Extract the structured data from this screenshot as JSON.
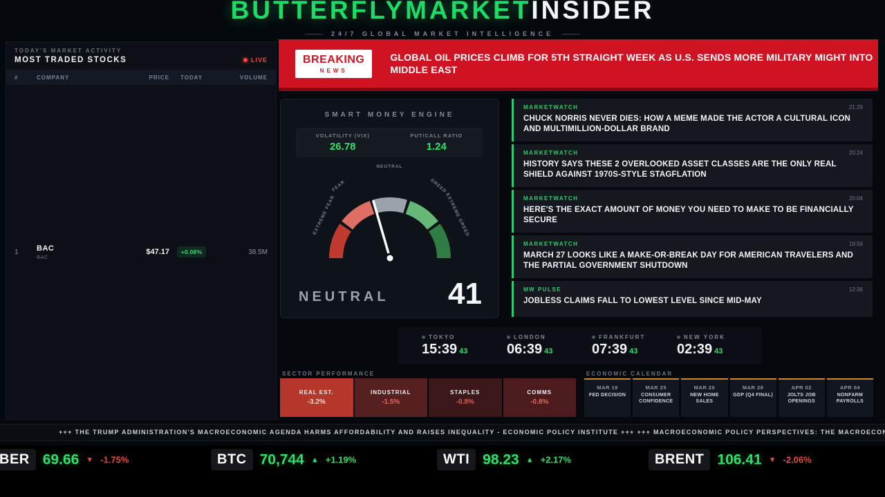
{
  "colors": {
    "accent_green": "#1ddb66",
    "alert_red": "#d01323",
    "gauge_segments": [
      "#c13a2e",
      "#df6e63",
      "#9aa2ab",
      "#67b877",
      "#2f7d45"
    ]
  },
  "header": {
    "brand_primary": "BUTTERFLYMARKET",
    "brand_secondary": "INSIDER",
    "subtitle": "24/7 GLOBAL MARKET INTELLIGENCE"
  },
  "stocks_panel": {
    "eyebrow": "TODAY'S MARKET ACTIVITY",
    "title": "MOST TRADED STOCKS",
    "live_label": "LIVE",
    "columns": [
      "#",
      "COMPANY",
      "PRICE",
      "TODAY",
      "VOLUME"
    ],
    "rows": [
      {
        "rank": "1",
        "symbol": "BAC",
        "sub_symbol": "BAC",
        "price": "$47.17",
        "change": "+0.08%",
        "volume": "38.5M"
      }
    ]
  },
  "breaking": {
    "badge_line1": "BREAKING",
    "badge_line2": "NEWS",
    "headline": "GLOBAL OIL PRICES CLIMB FOR 5TH STRAIGHT WEEK AS U.S. SENDS MORE MILITARY MIGHT INTO MIDDLE EAST"
  },
  "smart_money": {
    "title": "SMART MONEY ENGINE",
    "metrics": [
      {
        "label": "VOLATILITY (VIX)",
        "value": "26.78"
      },
      {
        "label": "PUT/CALL RATIO",
        "value": "1.24"
      }
    ],
    "gauge": {
      "value": 41,
      "sentiment": "NEUTRAL",
      "labels": {
        "extreme_fear": "EXTREME FEAR",
        "fear": "FEAR",
        "neutral": "NEUTRAL",
        "greed": "GREED",
        "extreme_greed": "EXTREME GREED"
      }
    }
  },
  "news": {
    "items": [
      {
        "source": "MARKETWATCH",
        "time": "21:29",
        "headline": "CHUCK NORRIS NEVER DIES: HOW A MEME MADE THE ACTOR A CULTURAL ICON AND MULTIMILLION-DOLLAR BRAND"
      },
      {
        "source": "MARKETWATCH",
        "time": "20:24",
        "headline": "HISTORY SAYS THESE 2 OVERLOOKED ASSET CLASSES ARE THE ONLY REAL SHIELD AGAINST 1970S-STYLE STAGFLATION"
      },
      {
        "source": "MARKETWATCH",
        "time": "20:04",
        "headline": "HERE'S THE EXACT AMOUNT OF MONEY YOU NEED TO MAKE TO BE FINANCIALLY SECURE"
      },
      {
        "source": "MARKETWATCH",
        "time": "19:56",
        "headline": "MARCH 27 LOOKS LIKE A MAKE-OR-BREAK DAY FOR AMERICAN TRAVELERS AND THE PARTIAL GOVERNMENT SHUTDOWN"
      },
      {
        "source": "MW PULSE",
        "time": "12:36",
        "headline": "JOBLESS CLAIMS FALL TO LOWEST LEVEL SINCE MID-MAY"
      }
    ]
  },
  "clocks": [
    {
      "city": "TOKYO",
      "time": "15:39",
      "seconds": "43"
    },
    {
      "city": "LONDON",
      "time": "06:39",
      "seconds": "43"
    },
    {
      "city": "FRANKFURT",
      "time": "07:39",
      "seconds": "43"
    },
    {
      "city": "NEW YORK",
      "time": "02:39",
      "seconds": "43"
    }
  ],
  "sectors": {
    "title": "SECTOR PERFORMANCE",
    "tiles": [
      {
        "name": "REAL EST.",
        "value": "-3.2%"
      },
      {
        "name": "INDUSTRIAL",
        "value": "-1.5%"
      },
      {
        "name": "STAPLES",
        "value": "-0.8%"
      },
      {
        "name": "COMMS",
        "value": "-0.8%"
      }
    ]
  },
  "calendar": {
    "title": "ECONOMIC CALENDAR",
    "events": [
      {
        "date": "MAR 19",
        "event": "FED DECISION"
      },
      {
        "date": "MAR 25",
        "event": "CONSUMER CONFIDENCE"
      },
      {
        "date": "MAR 26",
        "event": "NEW HOME SALES"
      },
      {
        "date": "MAR 28",
        "event": "GDP (Q4 FINAL)"
      },
      {
        "date": "APR 02",
        "event": "JOLTS JOB OPENINGS"
      },
      {
        "date": "APR 04",
        "event": "NONFARM PAYROLLS"
      }
    ]
  },
  "ticker_tape": "+++ THE TRUMP ADMINISTRATION'S MACROECONOMIC AGENDA HARMS AFFORDABILITY AND RAISES INEQUALITY - ECONOMIC POLICY INSTITUTE +++ +++ MACROECONOMIC POLICY PERSPECTIVES: THE MACROECONO",
  "price_bar": {
    "items": [
      {
        "symbol": "BER",
        "price": "69.66",
        "arrow": "▼",
        "change": "-1.75%"
      },
      {
        "symbol": "BTC",
        "price": "70,744",
        "arrow": "▲",
        "change": "+1.19%"
      },
      {
        "symbol": "WTI",
        "price": "98.23",
        "arrow": "▲",
        "change": "+2.17%"
      },
      {
        "symbol": "BRENT",
        "price": "106.41",
        "arrow": "▼",
        "change": "-2.06%"
      }
    ]
  }
}
